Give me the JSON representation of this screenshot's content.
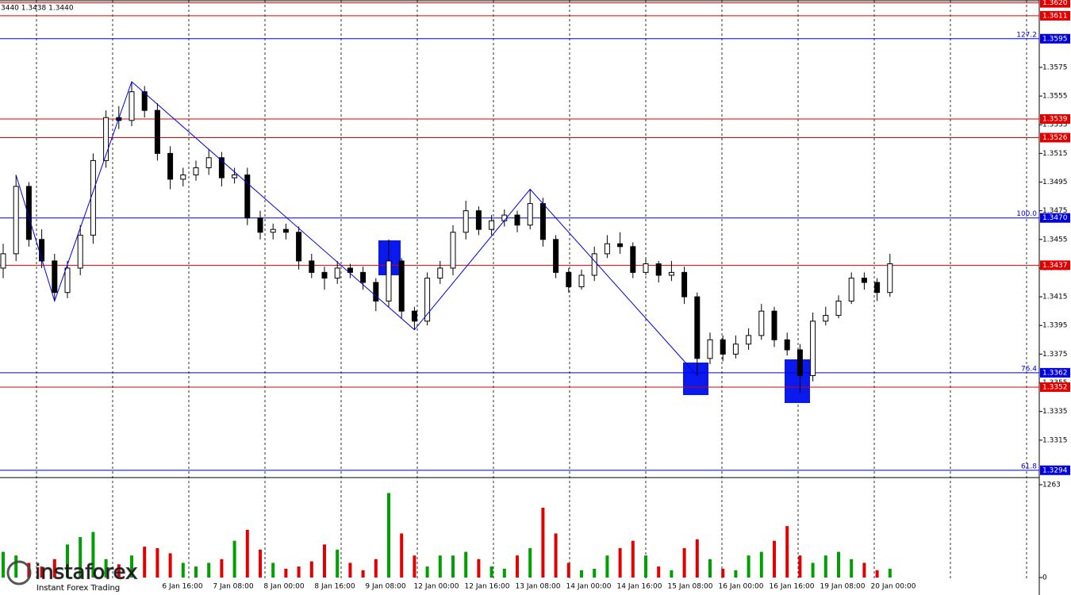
{
  "chart_data": {
    "type": "candlestick",
    "header": "3440 1.3438 1.3440",
    "ylim": [
      1.329,
      1.3622
    ],
    "yticks": [
      1.3575,
      1.3555,
      1.3535,
      1.3515,
      1.3495,
      1.3475,
      1.3455,
      1.3435,
      1.3415,
      1.3395,
      1.3375,
      1.3355,
      1.3335,
      1.3315
    ],
    "xtick_labels": [
      "6 Jan 16:00",
      "7 Jan 08:00",
      "8 Jan 00:00",
      "8 Jan 16:00",
      "9 Jan 08:00",
      "12 Jan 00:00",
      "12 Jan 16:00",
      "13 Jan 08:00",
      "14 Jan 00:00",
      "14 Jan 16:00",
      "15 Jan 08:00",
      "16 Jan 00:00",
      "16 Jan 16:00",
      "19 Jan 08:00",
      "20 Jan 00:00"
    ],
    "up_color": "#000000",
    "down_color": "#000000",
    "up_fill": "#ffffff",
    "down_fill": "#000000",
    "open": [
      1.3435,
      1.3445,
      1.3492,
      1.3455,
      1.344,
      1.3418,
      1.3435,
      1.3458,
      1.351,
      1.354,
      1.3538,
      1.3558,
      1.3545,
      1.3515,
      1.3497,
      1.35,
      1.3505,
      1.3512,
      1.3498,
      1.35,
      1.347,
      1.346,
      1.3462,
      1.346,
      1.344,
      1.3432,
      1.3428,
      1.3435,
      1.3432,
      1.3425,
      1.3412,
      1.344,
      1.3405,
      1.3398,
      1.3428,
      1.3435,
      1.346,
      1.3475,
      1.3462,
      1.3468,
      1.3472,
      1.3465,
      1.348,
      1.3455,
      1.3432,
      1.3422,
      1.343,
      1.3445,
      1.3452,
      1.345,
      1.3432,
      1.3438,
      1.343,
      1.3432,
      1.3415,
      1.3372,
      1.3385,
      1.3375,
      1.3382,
      1.3388,
      1.3405,
      1.3385,
      1.3378,
      1.336,
      1.3398,
      1.3402,
      1.3412,
      1.3428,
      1.3425,
      1.3418
    ],
    "high": [
      1.3452,
      1.35,
      1.3495,
      1.3462,
      1.3445,
      1.344,
      1.3465,
      1.3515,
      1.3545,
      1.3548,
      1.3565,
      1.3562,
      1.355,
      1.352,
      1.3505,
      1.351,
      1.3518,
      1.3516,
      1.3505,
      1.3505,
      1.3475,
      1.3466,
      1.3466,
      1.3464,
      1.3445,
      1.3436,
      1.344,
      1.3438,
      1.3436,
      1.3428,
      1.3455,
      1.3442,
      1.3408,
      1.3432,
      1.344,
      1.3465,
      1.3482,
      1.3478,
      1.3472,
      1.3476,
      1.3475,
      1.349,
      1.3484,
      1.3458,
      1.3435,
      1.3434,
      1.345,
      1.3458,
      1.346,
      1.3453,
      1.3442,
      1.344,
      1.344,
      1.3436,
      1.3418,
      1.339,
      1.3388,
      1.3388,
      1.3393,
      1.341,
      1.3408,
      1.339,
      1.3382,
      1.3404,
      1.3408,
      1.3416,
      1.3432,
      1.3432,
      1.3428,
      1.3445
    ],
    "low": [
      1.3428,
      1.344,
      1.345,
      1.3435,
      1.3412,
      1.3414,
      1.343,
      1.3452,
      1.3505,
      1.3532,
      1.3534,
      1.354,
      1.351,
      1.349,
      1.3492,
      1.3496,
      1.35,
      1.3492,
      1.3494,
      1.3465,
      1.3455,
      1.3455,
      1.3455,
      1.3434,
      1.3428,
      1.342,
      1.3424,
      1.3428,
      1.342,
      1.3405,
      1.3408,
      1.34,
      1.3392,
      1.3395,
      1.3424,
      1.343,
      1.3455,
      1.3458,
      1.3458,
      1.3464,
      1.346,
      1.3462,
      1.345,
      1.3428,
      1.3418,
      1.342,
      1.3426,
      1.3442,
      1.3445,
      1.3428,
      1.343,
      1.3425,
      1.3426,
      1.341,
      1.336,
      1.3368,
      1.337,
      1.3372,
      1.3378,
      1.3385,
      1.338,
      1.3374,
      1.3348,
      1.3356,
      1.3395,
      1.34,
      1.341,
      1.342,
      1.3412,
      1.3415
    ],
    "close": [
      1.3445,
      1.3492,
      1.3455,
      1.344,
      1.3418,
      1.3435,
      1.3458,
      1.351,
      1.354,
      1.3538,
      1.3558,
      1.3545,
      1.3515,
      1.3497,
      1.35,
      1.3505,
      1.3512,
      1.3498,
      1.35,
      1.347,
      1.346,
      1.3462,
      1.346,
      1.344,
      1.3432,
      1.3428,
      1.3435,
      1.3432,
      1.3425,
      1.3412,
      1.344,
      1.3405,
      1.3398,
      1.3428,
      1.3435,
      1.346,
      1.3475,
      1.3462,
      1.3468,
      1.3472,
      1.3465,
      1.348,
      1.3455,
      1.3432,
      1.3422,
      1.343,
      1.3445,
      1.3452,
      1.345,
      1.3432,
      1.3438,
      1.343,
      1.3432,
      1.3415,
      1.3372,
      1.3385,
      1.3375,
      1.3382,
      1.3388,
      1.3405,
      1.3385,
      1.3378,
      1.336,
      1.3398,
      1.3402,
      1.3412,
      1.3428,
      1.3425,
      1.3418,
      1.3438
    ],
    "levels": [
      {
        "value": 1.362,
        "label": "1.3620",
        "color": "#e00000"
      },
      {
        "value": 1.3611,
        "label": "1.3611",
        "color": "#e00000"
      },
      {
        "value": 1.3595,
        "label": "1.3595",
        "color": "#0000e0",
        "fib": "127.2"
      },
      {
        "value": 1.3539,
        "label": "1.3539",
        "color": "#e00000"
      },
      {
        "value": 1.3526,
        "label": "1.3526",
        "color": "#e00000"
      },
      {
        "value": 1.347,
        "label": "1.3470",
        "color": "#0000e0",
        "fib": "100.0"
      },
      {
        "value": 1.3437,
        "label": "1.3437",
        "color": "#e00000"
      },
      {
        "value": 1.3362,
        "label": "1.3362",
        "color": "#0000e0",
        "fib": "76.4"
      },
      {
        "value": 1.3352,
        "label": "1.3352",
        "color": "#e00000"
      },
      {
        "value": 1.3294,
        "label": "1.3294",
        "color": "#0000e0",
        "fib": "61.8"
      }
    ],
    "zigzag": {
      "color": "#0000e0",
      "x": [
        1,
        4,
        10,
        32,
        41,
        54
      ],
      "y": [
        1.35,
        1.3412,
        1.3565,
        1.3392,
        1.349,
        1.336
      ]
    },
    "volume": {
      "vlim": [
        0,
        1263
      ],
      "vticks": [
        1263,
        0
      ],
      "up_color": "#00a000",
      "down_color": "#e00000",
      "values": [
        350,
        300,
        200,
        150,
        250,
        450,
        550,
        620,
        250,
        180,
        300,
        420,
        400,
        330,
        200,
        150,
        200,
        250,
        500,
        650,
        380,
        200,
        120,
        150,
        220,
        450,
        380,
        200,
        100,
        250,
        1150,
        600,
        300,
        150,
        300,
        300,
        350,
        250,
        150,
        120,
        300,
        400,
        950,
        600,
        200,
        100,
        120,
        300,
        400,
        500,
        300,
        150,
        100,
        400,
        520,
        250,
        120,
        100,
        300,
        350,
        500,
        700,
        300,
        200,
        300,
        350,
        250,
        200,
        100,
        120
      ]
    },
    "watermark": {
      "brand": "instaforex",
      "tagline": "Instant Forex Trading"
    }
  }
}
